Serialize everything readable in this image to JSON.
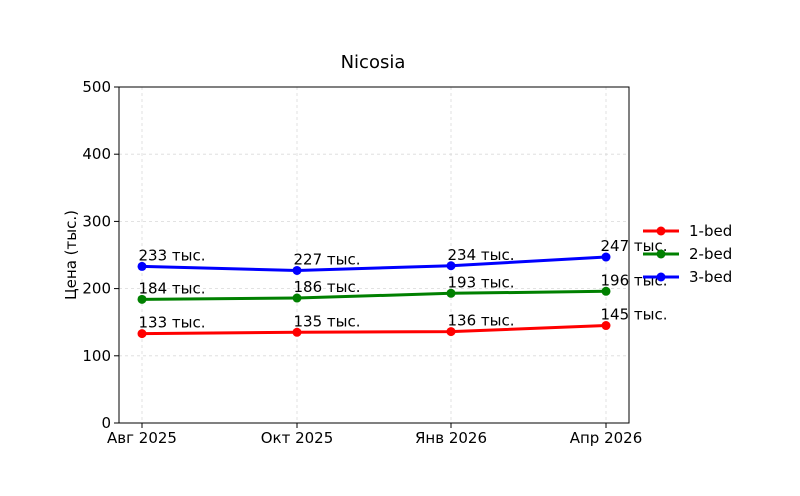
{
  "chart_data": {
    "type": "line",
    "title": "Nicosia",
    "xlabel": "",
    "ylabel": "Цена (тыс.)",
    "categories": [
      "Авг 2025",
      "Окт 2025",
      "Янв 2026",
      "Апр 2026"
    ],
    "ylim": [
      0,
      500
    ],
    "yticks": [
      "0",
      "100",
      "200",
      "300",
      "400",
      "500"
    ],
    "grid": true,
    "legend_position": "right",
    "series": [
      {
        "name": "1-bed",
        "color": "#ff0000",
        "values": [
          133,
          135,
          136,
          145
        ],
        "labels": [
          "133 тыс.",
          "135 тыс.",
          "136 тыс.",
          "145 тыс."
        ]
      },
      {
        "name": "2-bed",
        "color": "#008000",
        "values": [
          184,
          186,
          193,
          196
        ],
        "labels": [
          "184 тыс.",
          "186 тыс.",
          "193 тыс.",
          "196 тыс."
        ]
      },
      {
        "name": "3-bed",
        "color": "#0000ff",
        "values": [
          233,
          227,
          234,
          247
        ],
        "labels": [
          "233 тыс.",
          "227 тыс.",
          "234 тыс.",
          "247 тыс."
        ]
      }
    ]
  }
}
